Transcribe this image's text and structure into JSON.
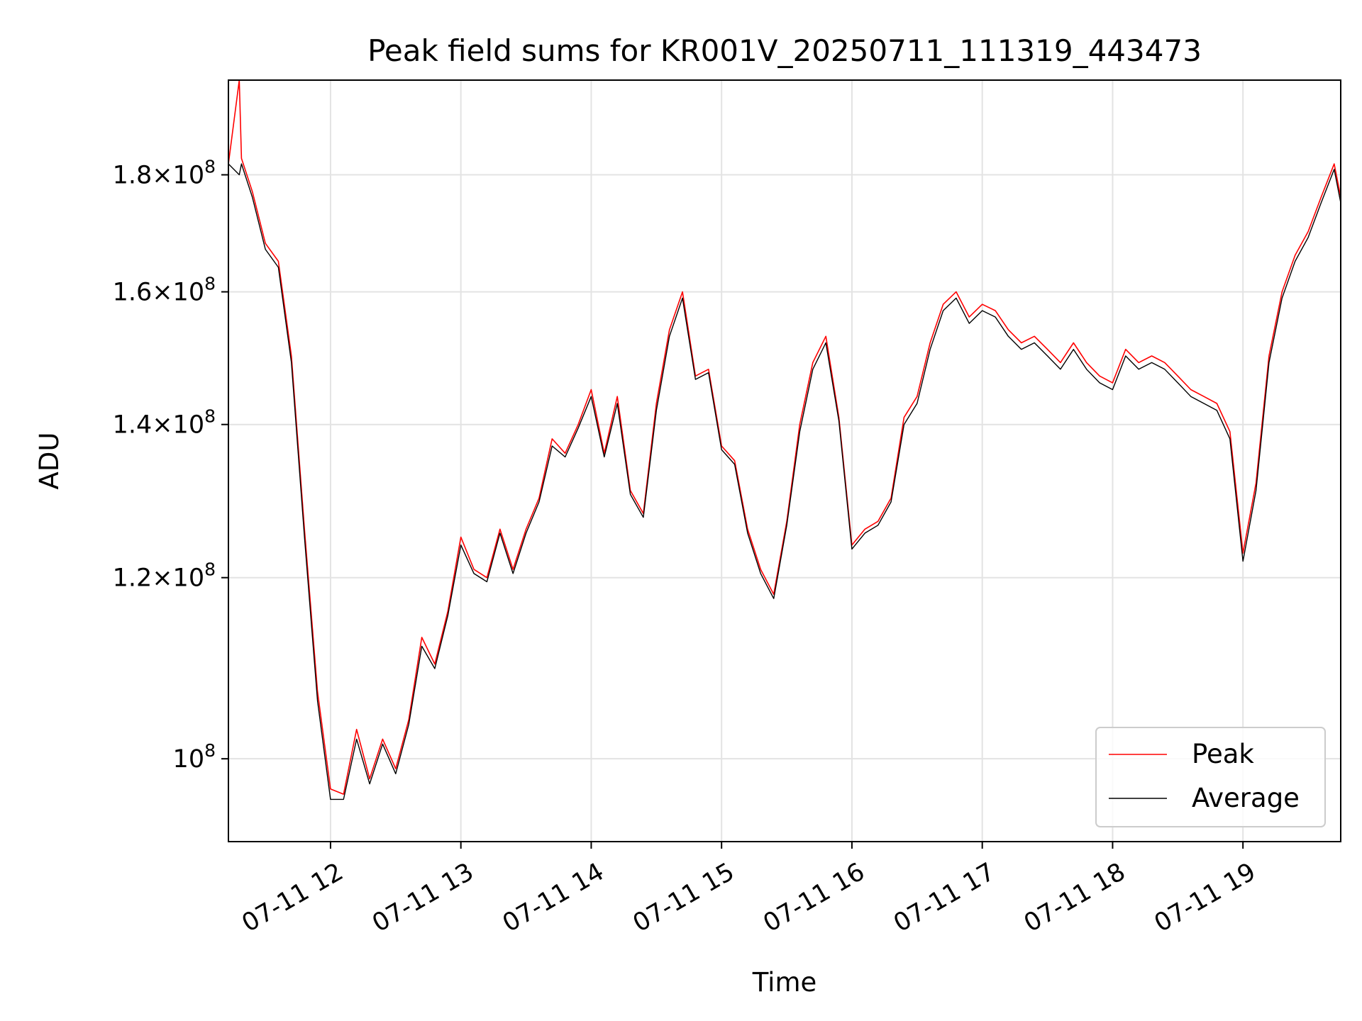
{
  "chart_data": {
    "type": "line",
    "title": "Peak field sums for KR001V_20250711_111319_443473",
    "xlabel": "Time",
    "ylabel": "ADU",
    "x_axis": {
      "scale": "time",
      "range": [
        "2025-07-11 11:13",
        "2025-07-11 19:45"
      ]
    },
    "y_axis": {
      "scale": "log",
      "range": [
        92000000,
        198000000
      ]
    },
    "x_ticks": [
      "07-11 12",
      "07-11 13",
      "07-11 14",
      "07-11 15",
      "07-11 16",
      "07-11 17",
      "07-11 18",
      "07-11 19"
    ],
    "x_tick_times": [
      "2025-07-11 12:00",
      "2025-07-11 13:00",
      "2025-07-11 14:00",
      "2025-07-11 15:00",
      "2025-07-11 16:00",
      "2025-07-11 17:00",
      "2025-07-11 18:00",
      "2025-07-11 19:00"
    ],
    "y_ticks": [
      {
        "value": 100000000,
        "mantissa": "",
        "exponent": "8"
      },
      {
        "value": 120000000,
        "mantissa": "1.2",
        "exponent": "8"
      },
      {
        "value": 140000000,
        "mantissa": "1.4",
        "exponent": "8"
      },
      {
        "value": 160000000,
        "mantissa": "1.6",
        "exponent": "8"
      },
      {
        "value": 180000000,
        "mantissa": "1.8",
        "exponent": "8"
      }
    ],
    "grid": true,
    "legend": {
      "position": "bottom-right"
    },
    "series": [
      {
        "name": "Peak",
        "color": "#ff0000",
        "x": [
          "2025-07-11 11:13",
          "2025-07-11 11:18",
          "2025-07-11 11:19",
          "2025-07-11 11:24",
          "2025-07-11 11:30",
          "2025-07-11 11:36",
          "2025-07-11 11:42",
          "2025-07-11 11:48",
          "2025-07-11 11:54",
          "2025-07-11 12:00",
          "2025-07-11 12:06",
          "2025-07-11 12:12",
          "2025-07-11 12:18",
          "2025-07-11 12:24",
          "2025-07-11 12:30",
          "2025-07-11 12:36",
          "2025-07-11 12:42",
          "2025-07-11 12:48",
          "2025-07-11 12:54",
          "2025-07-11 13:00",
          "2025-07-11 13:06",
          "2025-07-11 13:12",
          "2025-07-11 13:18",
          "2025-07-11 13:24",
          "2025-07-11 13:30",
          "2025-07-11 13:36",
          "2025-07-11 13:42",
          "2025-07-11 13:48",
          "2025-07-11 13:54",
          "2025-07-11 14:00",
          "2025-07-11 14:06",
          "2025-07-11 14:12",
          "2025-07-11 14:18",
          "2025-07-11 14:24",
          "2025-07-11 14:30",
          "2025-07-11 14:36",
          "2025-07-11 14:42",
          "2025-07-11 14:48",
          "2025-07-11 14:54",
          "2025-07-11 15:00",
          "2025-07-11 15:06",
          "2025-07-11 15:12",
          "2025-07-11 15:18",
          "2025-07-11 15:24",
          "2025-07-11 15:30",
          "2025-07-11 15:36",
          "2025-07-11 15:42",
          "2025-07-11 15:48",
          "2025-07-11 15:54",
          "2025-07-11 16:00",
          "2025-07-11 16:06",
          "2025-07-11 16:12",
          "2025-07-11 16:18",
          "2025-07-11 16:24",
          "2025-07-11 16:30",
          "2025-07-11 16:36",
          "2025-07-11 16:42",
          "2025-07-11 16:48",
          "2025-07-11 16:54",
          "2025-07-11 17:00",
          "2025-07-11 17:06",
          "2025-07-11 17:12",
          "2025-07-11 17:18",
          "2025-07-11 17:24",
          "2025-07-11 17:30",
          "2025-07-11 17:36",
          "2025-07-11 17:42",
          "2025-07-11 17:48",
          "2025-07-11 17:54",
          "2025-07-11 18:00",
          "2025-07-11 18:06",
          "2025-07-11 18:12",
          "2025-07-11 18:18",
          "2025-07-11 18:24",
          "2025-07-11 18:30",
          "2025-07-11 18:36",
          "2025-07-11 18:42",
          "2025-07-11 18:48",
          "2025-07-11 18:54",
          "2025-07-11 19:00",
          "2025-07-11 19:06",
          "2025-07-11 19:12",
          "2025-07-11 19:18",
          "2025-07-11 19:24",
          "2025-07-11 19:30",
          "2025-07-11 19:36",
          "2025-07-11 19:42",
          "2025-07-11 19:45"
        ],
        "y": [
          182000000,
          198000000,
          183000000,
          177000000,
          168000000,
          165000000,
          150000000,
          126000000,
          107000000,
          97000000,
          96500000,
          103000000,
          98000000,
          102000000,
          99000000,
          104000000,
          113000000,
          110000000,
          116000000,
          125000000,
          121000000,
          120000000,
          126000000,
          121000000,
          126000000,
          130000000,
          138000000,
          136000000,
          140000000,
          145000000,
          136000000,
          144000000,
          131000000,
          128000000,
          143000000,
          154000000,
          160000000,
          147000000,
          148000000,
          137000000,
          135000000,
          126000000,
          121000000,
          118000000,
          127000000,
          140000000,
          149000000,
          153000000,
          141000000,
          124000000,
          126000000,
          127000000,
          130000000,
          141000000,
          144000000,
          152000000,
          158000000,
          160000000,
          156000000,
          158000000,
          157000000,
          154000000,
          152000000,
          153000000,
          151000000,
          149000000,
          152000000,
          149000000,
          147000000,
          146000000,
          151000000,
          149000000,
          150000000,
          149000000,
          147000000,
          145000000,
          144000000,
          143000000,
          139000000,
          123000000,
          132000000,
          150000000,
          160000000,
          166000000,
          170000000,
          176000000,
          182000000,
          176000000
        ]
      },
      {
        "name": "Average",
        "color": "#000000",
        "x": [
          "2025-07-11 11:13",
          "2025-07-11 11:18",
          "2025-07-11 11:19",
          "2025-07-11 11:24",
          "2025-07-11 11:30",
          "2025-07-11 11:36",
          "2025-07-11 11:42",
          "2025-07-11 11:48",
          "2025-07-11 11:54",
          "2025-07-11 12:00",
          "2025-07-11 12:06",
          "2025-07-11 12:12",
          "2025-07-11 12:18",
          "2025-07-11 12:24",
          "2025-07-11 12:30",
          "2025-07-11 12:36",
          "2025-07-11 12:42",
          "2025-07-11 12:48",
          "2025-07-11 12:54",
          "2025-07-11 13:00",
          "2025-07-11 13:06",
          "2025-07-11 13:12",
          "2025-07-11 13:18",
          "2025-07-11 13:24",
          "2025-07-11 13:30",
          "2025-07-11 13:36",
          "2025-07-11 13:42",
          "2025-07-11 13:48",
          "2025-07-11 13:54",
          "2025-07-11 14:00",
          "2025-07-11 14:06",
          "2025-07-11 14:12",
          "2025-07-11 14:18",
          "2025-07-11 14:24",
          "2025-07-11 14:30",
          "2025-07-11 14:36",
          "2025-07-11 14:42",
          "2025-07-11 14:48",
          "2025-07-11 14:54",
          "2025-07-11 15:00",
          "2025-07-11 15:06",
          "2025-07-11 15:12",
          "2025-07-11 15:18",
          "2025-07-11 15:24",
          "2025-07-11 15:30",
          "2025-07-11 15:36",
          "2025-07-11 15:42",
          "2025-07-11 15:48",
          "2025-07-11 15:54",
          "2025-07-11 16:00",
          "2025-07-11 16:06",
          "2025-07-11 16:12",
          "2025-07-11 16:18",
          "2025-07-11 16:24",
          "2025-07-11 16:30",
          "2025-07-11 16:36",
          "2025-07-11 16:42",
          "2025-07-11 16:48",
          "2025-07-11 16:54",
          "2025-07-11 17:00",
          "2025-07-11 17:06",
          "2025-07-11 17:12",
          "2025-07-11 17:18",
          "2025-07-11 17:24",
          "2025-07-11 17:30",
          "2025-07-11 17:36",
          "2025-07-11 17:42",
          "2025-07-11 17:48",
          "2025-07-11 17:54",
          "2025-07-11 18:00",
          "2025-07-11 18:06",
          "2025-07-11 18:12",
          "2025-07-11 18:18",
          "2025-07-11 18:24",
          "2025-07-11 18:30",
          "2025-07-11 18:36",
          "2025-07-11 18:42",
          "2025-07-11 18:48",
          "2025-07-11 18:54",
          "2025-07-11 19:00",
          "2025-07-11 19:06",
          "2025-07-11 19:12",
          "2025-07-11 19:18",
          "2025-07-11 19:24",
          "2025-07-11 19:30",
          "2025-07-11 19:36",
          "2025-07-11 19:42",
          "2025-07-11 19:45"
        ],
        "y": [
          182000000,
          180000000,
          182000000,
          176000000,
          167000000,
          164000000,
          149000000,
          125000000,
          106000000,
          96000000,
          96000000,
          102000000,
          97500000,
          101500000,
          98500000,
          103500000,
          112000000,
          109500000,
          115500000,
          124000000,
          120500000,
          119500000,
          125500000,
          120500000,
          125500000,
          129500000,
          137000000,
          135500000,
          139500000,
          144000000,
          135500000,
          143000000,
          130500000,
          127500000,
          142000000,
          153000000,
          159000000,
          146500000,
          147500000,
          136500000,
          134500000,
          125500000,
          120500000,
          117500000,
          126500000,
          139000000,
          148000000,
          152000000,
          140500000,
          123500000,
          125500000,
          126500000,
          129500000,
          140000000,
          143000000,
          151000000,
          157000000,
          159000000,
          155000000,
          157000000,
          156000000,
          153000000,
          151000000,
          152000000,
          150000000,
          148000000,
          151000000,
          148000000,
          146000000,
          145000000,
          150000000,
          148000000,
          149000000,
          148000000,
          146000000,
          144000000,
          143000000,
          142000000,
          138000000,
          122000000,
          131000000,
          149000000,
          159000000,
          165000000,
          169000000,
          175000000,
          181000000,
          175000000
        ]
      }
    ]
  }
}
